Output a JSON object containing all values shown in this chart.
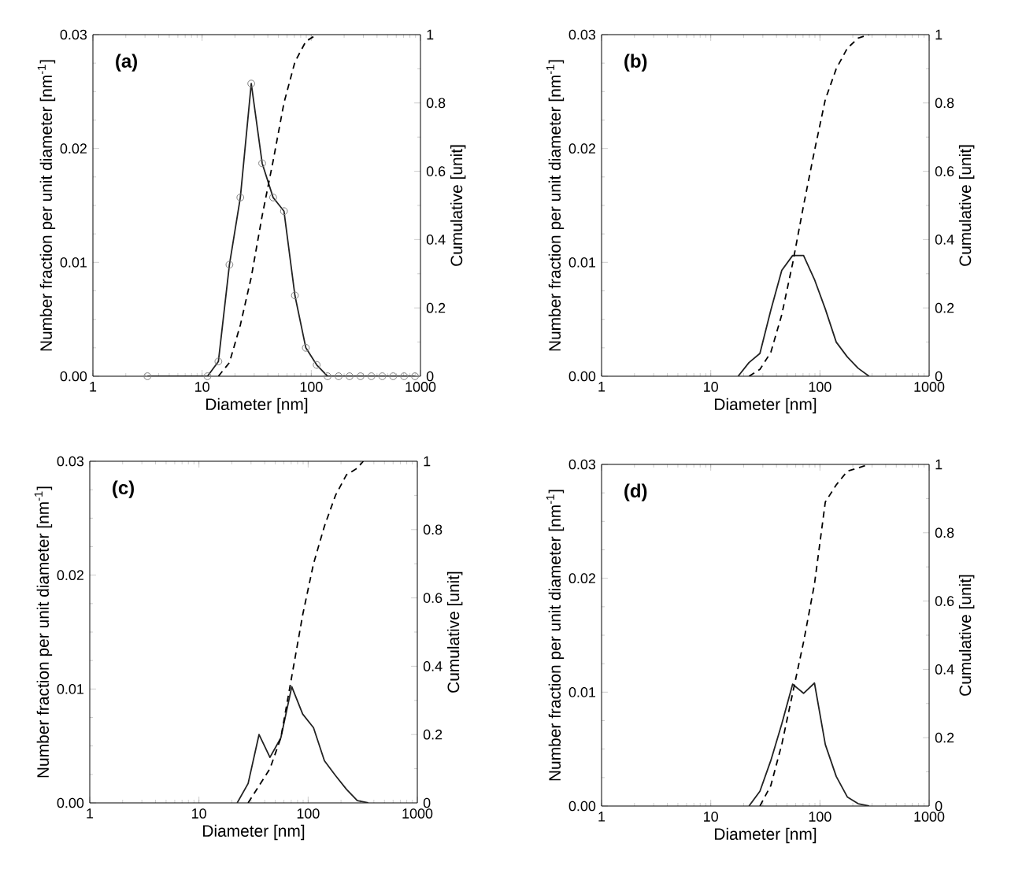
{
  "chart_data": [
    {
      "type": "line",
      "xlabel": "Diameter [nm]",
      "ylabel": "Number fraction per unit diameter [nm$^{-1}$]",
      "y2label": "Cumulative [unit]",
      "annotations": [
        "(a)"
      ],
      "log": "x",
      "xlim": [
        1,
        1000
      ],
      "xticks": [
        1,
        10,
        100,
        1000
      ],
      "ylim": [
        0,
        0.03
      ],
      "yticks": [
        {
          "value": 0,
          "label": "0.00"
        },
        {
          "value": 0.01,
          "label": "0.01"
        },
        {
          "value": 0.02,
          "label": "0.02"
        },
        {
          "value": 0.03,
          "label": "0.03"
        }
      ],
      "y2lim": [
        0,
        1
      ],
      "y2ticks": [
        0,
        0.2,
        0.4,
        0.6,
        0.8,
        1
      ],
      "series": [
        {
          "color": "#222222",
          "line_style": "solid",
          "marker": "circle",
          "x": [
            3.16,
            11.2,
            14.1,
            17.8,
            22.4,
            28.2,
            35.5,
            44.7,
            56.2,
            70.8,
            89.1,
            112,
            141,
            178,
            224,
            282,
            355,
            447,
            562,
            708,
            891
          ],
          "values": [
            0,
            0,
            0.0013,
            0.0098,
            0.0157,
            0.0257,
            0.0187,
            0.0157,
            0.0145,
            0.0071,
            0.0025,
            0.001,
            0,
            0,
            0,
            0,
            0,
            0,
            0,
            0,
            0
          ]
        },
        {
          "color": "#000000",
          "line_style": "dashed",
          "axis": "y2",
          "x": [
            14.1,
            17.8,
            22.4,
            28.2,
            35.5,
            44.7,
            56.2,
            70.8,
            89.1,
            112
          ],
          "values": [
            0,
            0.04,
            0.15,
            0.29,
            0.47,
            0.63,
            0.8,
            0.92,
            0.98,
            1
          ]
        }
      ]
    },
    {
      "type": "line",
      "xlabel": "Diameter [nm]",
      "ylabel": "Number fraction per unit diameter [nm$^{-1}$]",
      "y2label": "Cumulative [unit]",
      "annotations": [
        "(b)"
      ],
      "log": "x",
      "xlim": [
        1,
        1000
      ],
      "xticks": [
        1,
        10,
        100,
        1000
      ],
      "ylim": [
        0,
        0.03
      ],
      "yticks": [
        {
          "value": 0,
          "label": "0.00"
        },
        {
          "value": 0.01,
          "label": "0.01"
        },
        {
          "value": 0.02,
          "label": "0.02"
        },
        {
          "value": 0.03,
          "label": "0.03"
        }
      ],
      "y2lim": [
        0,
        1
      ],
      "y2ticks": [
        0,
        0.2,
        0.4,
        0.6,
        0.8,
        1
      ],
      "series": [
        {
          "color": "#222222",
          "line_style": "solid",
          "x": [
            17.8,
            22.4,
            28.2,
            35.5,
            44.7,
            56.2,
            70.8,
            89.1,
            112,
            141,
            178,
            224,
            282
          ],
          "values": [
            0,
            0.0012,
            0.002,
            0.0058,
            0.0093,
            0.0106,
            0.0106,
            0.0085,
            0.0059,
            0.003,
            0.0017,
            0.0007,
            0
          ]
        },
        {
          "color": "#000000",
          "line_style": "dashed",
          "axis": "y2",
          "x": [
            22.4,
            28.2,
            35.5,
            44.7,
            56.2,
            70.8,
            89.1,
            112,
            141,
            178,
            224,
            282
          ],
          "values": [
            0,
            0.02,
            0.07,
            0.18,
            0.33,
            0.5,
            0.66,
            0.81,
            0.9,
            0.96,
            0.99,
            1
          ]
        }
      ]
    },
    {
      "type": "line",
      "xlabel": "Diameter [nm]",
      "ylabel": "Number fraction per unit diameter [nm$^{-1}$]",
      "y2label": "Cumulative [unit]",
      "annotations": [
        "(c)"
      ],
      "log": "x",
      "xlim": [
        1,
        1000
      ],
      "xticks": [
        1,
        10,
        100,
        1000
      ],
      "ylim": [
        0,
        0.03
      ],
      "yticks": [
        {
          "value": 0,
          "label": "0.00"
        },
        {
          "value": 0.01,
          "label": "0.01"
        },
        {
          "value": 0.02,
          "label": "0.02"
        },
        {
          "value": 0.03,
          "label": "0.03"
        }
      ],
      "y2lim": [
        0,
        1
      ],
      "y2ticks": [
        0,
        0.2,
        0.4,
        0.6,
        0.8,
        1
      ],
      "series": [
        {
          "color": "#222222",
          "line_style": "solid",
          "x": [
            22.4,
            28.2,
            35.5,
            44.7,
            56.2,
            70.8,
            89.1,
            112,
            141,
            178,
            224,
            282,
            355
          ],
          "values": [
            0,
            0.0017,
            0.006,
            0.004,
            0.0057,
            0.0102,
            0.0078,
            0.0066,
            0.0037,
            0.0024,
            0.0012,
            0.0002,
            0
          ]
        },
        {
          "color": "#000000",
          "line_style": "dashed",
          "axis": "y2",
          "x": [
            28.2,
            35.5,
            44.7,
            56.2,
            70.8,
            89.1,
            112,
            141,
            178,
            224,
            282,
            320
          ],
          "values": [
            0,
            0.05,
            0.1,
            0.19,
            0.37,
            0.55,
            0.7,
            0.81,
            0.9,
            0.96,
            0.98,
            1
          ]
        }
      ]
    },
    {
      "type": "line",
      "xlabel": "Diameter [nm]",
      "ylabel": "Number fraction per unit diameter [nm$^{-1}$]",
      "y2label": "Cumulative [unit]",
      "annotations": [
        "(d)"
      ],
      "log": "x",
      "xlim": [
        1,
        1000
      ],
      "xticks": [
        1,
        10,
        100,
        1000
      ],
      "ylim": [
        0,
        0.03
      ],
      "yticks": [
        {
          "value": 0,
          "label": "0.00"
        },
        {
          "value": 0.01,
          "label": "0.01"
        },
        {
          "value": 0.02,
          "label": "0.02"
        },
        {
          "value": 0.03,
          "label": "0.03"
        }
      ],
      "y2lim": [
        0,
        1
      ],
      "y2ticks": [
        0,
        0.2,
        0.4,
        0.6,
        0.8,
        1
      ],
      "series": [
        {
          "color": "#222222",
          "line_style": "solid",
          "x": [
            22.4,
            28.2,
            35.5,
            44.7,
            56.2,
            70.8,
            89.1,
            112,
            141,
            178,
            224,
            282
          ],
          "values": [
            0,
            0.0013,
            0.004,
            0.0072,
            0.0107,
            0.0099,
            0.0108,
            0.0054,
            0.0026,
            0.0008,
            0.0002,
            0
          ]
        },
        {
          "color": "#000000",
          "line_style": "dashed",
          "axis": "y2",
          "x": [
            28.2,
            35.5,
            44.7,
            56.2,
            70.8,
            89.1,
            112,
            141,
            178,
            224,
            282
          ],
          "values": [
            0,
            0.06,
            0.18,
            0.33,
            0.48,
            0.65,
            0.89,
            0.94,
            0.98,
            0.99,
            1
          ]
        }
      ]
    }
  ]
}
